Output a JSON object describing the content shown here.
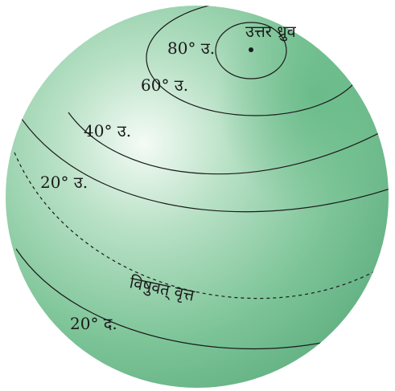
{
  "diagram": {
    "pole_label": "उत्तर ध्रुव",
    "latitudes": [
      {
        "label": "80° उ."
      },
      {
        "label": "60° उ."
      },
      {
        "label": "40° उ."
      },
      {
        "label": "20° उ."
      },
      {
        "label": "विषुवत् वृत्त"
      },
      {
        "label": "20° द."
      }
    ]
  }
}
